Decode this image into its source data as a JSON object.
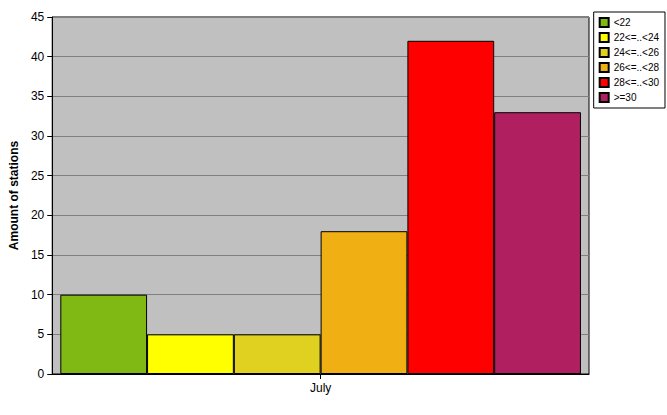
{
  "chart_data": {
    "type": "bar",
    "categories": [
      "July"
    ],
    "series": [
      {
        "name": "<22",
        "color": "#80b814",
        "values": [
          10
        ]
      },
      {
        "name": "22<=..<24",
        "color": "#ffff00",
        "values": [
          5
        ]
      },
      {
        "name": "24<=..<26",
        "color": "#e0d020",
        "values": [
          5
        ]
      },
      {
        "name": "26<=..<28",
        "color": "#f0b014",
        "values": [
          18
        ]
      },
      {
        "name": "28<=..<30",
        "color": "#ff0000",
        "values": [
          42
        ]
      },
      {
        "name": ">=30",
        "color": "#b02060",
        "values": [
          33
        ]
      }
    ],
    "ylabel": "Amount of stations",
    "ylim": [
      0,
      45
    ],
    "yticks": [
      0,
      5,
      10,
      15,
      20,
      25,
      30,
      35,
      40,
      45
    ],
    "grid": true,
    "legend": "top right"
  }
}
